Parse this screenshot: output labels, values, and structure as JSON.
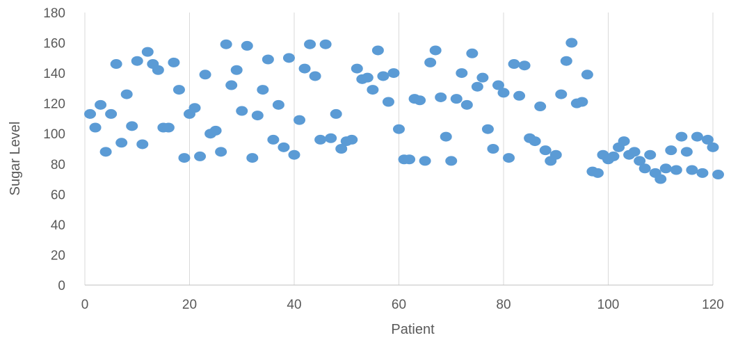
{
  "chart_data": {
    "type": "scatter",
    "xlabel": "Patient",
    "ylabel": "Sugar Level",
    "xlim": [
      0,
      120
    ],
    "ylim": [
      0,
      180
    ],
    "xticks": [
      0,
      20,
      40,
      60,
      80,
      100,
      120
    ],
    "yticks": [
      0,
      20,
      40,
      60,
      80,
      100,
      120,
      140,
      160,
      180
    ],
    "grid": "vertical",
    "marker_color": "#5b9bd5",
    "series": [
      {
        "points": [
          [
            1,
            113
          ],
          [
            2,
            104
          ],
          [
            3,
            119
          ],
          [
            4,
            88
          ],
          [
            5,
            113
          ],
          [
            6,
            146
          ],
          [
            7,
            94
          ],
          [
            8,
            126
          ],
          [
            9,
            105
          ],
          [
            10,
            148
          ],
          [
            11,
            93
          ],
          [
            12,
            154
          ],
          [
            13,
            146
          ],
          [
            14,
            142
          ],
          [
            15,
            104
          ],
          [
            16,
            104
          ],
          [
            17,
            147
          ],
          [
            18,
            129
          ],
          [
            19,
            84
          ],
          [
            20,
            113
          ],
          [
            21,
            117
          ],
          [
            22,
            85
          ],
          [
            23,
            139
          ],
          [
            24,
            100
          ],
          [
            25,
            102
          ],
          [
            26,
            88
          ],
          [
            27,
            159
          ],
          [
            28,
            132
          ],
          [
            29,
            142
          ],
          [
            30,
            115
          ],
          [
            31,
            158
          ],
          [
            32,
            84
          ],
          [
            33,
            112
          ],
          [
            34,
            129
          ],
          [
            35,
            149
          ],
          [
            36,
            96
          ],
          [
            37,
            119
          ],
          [
            38,
            91
          ],
          [
            39,
            150
          ],
          [
            40,
            86
          ],
          [
            41,
            109
          ],
          [
            42,
            143
          ],
          [
            43,
            159
          ],
          [
            44,
            138
          ],
          [
            45,
            96
          ],
          [
            46,
            159
          ],
          [
            47,
            97
          ],
          [
            48,
            113
          ],
          [
            49,
            90
          ],
          [
            50,
            95
          ],
          [
            51,
            96
          ],
          [
            52,
            143
          ],
          [
            53,
            136
          ],
          [
            54,
            137
          ],
          [
            55,
            129
          ],
          [
            56,
            155
          ],
          [
            57,
            138
          ],
          [
            58,
            121
          ],
          [
            59,
            140
          ],
          [
            60,
            103
          ],
          [
            61,
            83
          ],
          [
            62,
            83
          ],
          [
            63,
            123
          ],
          [
            64,
            122
          ],
          [
            65,
            82
          ],
          [
            66,
            147
          ],
          [
            67,
            155
          ],
          [
            68,
            124
          ],
          [
            69,
            98
          ],
          [
            70,
            82
          ],
          [
            71,
            123
          ],
          [
            72,
            140
          ],
          [
            73,
            119
          ],
          [
            74,
            153
          ],
          [
            75,
            131
          ],
          [
            76,
            137
          ],
          [
            77,
            103
          ],
          [
            78,
            90
          ],
          [
            79,
            132
          ],
          [
            80,
            127
          ],
          [
            81,
            84
          ],
          [
            82,
            146
          ],
          [
            83,
            125
          ],
          [
            84,
            145
          ],
          [
            85,
            97
          ],
          [
            86,
            95
          ],
          [
            87,
            118
          ],
          [
            88,
            89
          ],
          [
            89,
            82
          ],
          [
            90,
            86
          ],
          [
            91,
            126
          ],
          [
            92,
            148
          ],
          [
            93,
            160
          ],
          [
            94,
            120
          ],
          [
            95,
            121
          ],
          [
            96,
            139
          ],
          [
            97,
            75
          ],
          [
            98,
            74
          ],
          [
            99,
            86
          ],
          [
            100,
            83
          ],
          [
            101,
            85
          ],
          [
            102,
            91
          ],
          [
            103,
            95
          ],
          [
            104,
            86
          ],
          [
            105,
            88
          ],
          [
            106,
            82
          ],
          [
            107,
            77
          ],
          [
            108,
            86
          ],
          [
            109,
            74
          ],
          [
            110,
            70
          ],
          [
            111,
            77
          ],
          [
            112,
            89
          ],
          [
            113,
            76
          ],
          [
            114,
            98
          ],
          [
            115,
            88
          ],
          [
            116,
            76
          ],
          [
            117,
            98
          ],
          [
            118,
            74
          ],
          [
            119,
            96
          ],
          [
            120,
            91
          ],
          [
            121,
            73
          ]
        ]
      }
    ]
  }
}
